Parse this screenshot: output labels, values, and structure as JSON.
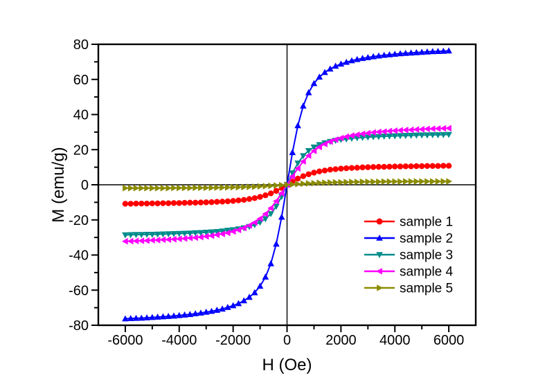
{
  "figure": {
    "background": "#FFFFFF",
    "frame_color": "#000000"
  },
  "chart_data": {
    "type": "line",
    "title": "",
    "xlabel": "H (Oe)",
    "ylabel": "M (emu/g)",
    "xlim": [
      -7000,
      7000
    ],
    "ylim": [
      -80,
      80
    ],
    "grid": false,
    "zero_axis_lines": true,
    "x_ticks": [
      -6000,
      -4000,
      -2000,
      0,
      2000,
      4000,
      6000
    ],
    "x_tick_labels": [
      "-6000",
      "-4000",
      "-2000",
      "0",
      "2000",
      "4000",
      "6000"
    ],
    "x_minor_ticks": [
      -5000,
      -3000,
      -1000,
      1000,
      3000,
      5000
    ],
    "y_ticks": [
      -80,
      -60,
      -40,
      -20,
      0,
      20,
      40,
      60,
      80
    ],
    "y_tick_labels": [
      "-80",
      "-60",
      "-40",
      "-20",
      "0",
      "20",
      "40",
      "60",
      "80"
    ],
    "y_minor_ticks": [
      -70,
      -50,
      -30,
      -10,
      10,
      30,
      50,
      70
    ],
    "legend": {
      "position": "inside-right-middle",
      "border": false,
      "labels": [
        "sample 1",
        "sample 2",
        "sample 3",
        "sample 4",
        "sample 5"
      ]
    },
    "x": [
      -6000,
      -5800,
      -5600,
      -5400,
      -5200,
      -5000,
      -4800,
      -4600,
      -4400,
      -4200,
      -4000,
      -3800,
      -3600,
      -3400,
      -3200,
      -3000,
      -2800,
      -2600,
      -2400,
      -2200,
      -2000,
      -1800,
      -1600,
      -1400,
      -1200,
      -1000,
      -800,
      -600,
      -400,
      -200,
      0,
      200,
      400,
      600,
      800,
      1000,
      1200,
      1400,
      1600,
      1800,
      2000,
      2200,
      2400,
      2600,
      2800,
      3000,
      3200,
      3400,
      3600,
      3800,
      4000,
      4200,
      4400,
      4600,
      4800,
      5000,
      5200,
      5400,
      5600,
      5800,
      6000
    ],
    "series": [
      {
        "name": "sample 1",
        "color": "#FF0000",
        "marker": "circle",
        "saturation_emu_g": 10.8,
        "values": [
          -10.8,
          -10.8,
          -10.7,
          -10.7,
          -10.7,
          -10.6,
          -10.6,
          -10.5,
          -10.5,
          -10.4,
          -10.4,
          -10.3,
          -10.2,
          -10.2,
          -10.1,
          -10.0,
          -9.9,
          -9.7,
          -9.6,
          -9.4,
          -9.2,
          -8.9,
          -8.6,
          -8.1,
          -7.6,
          -6.9,
          -6.0,
          -4.9,
          -3.5,
          -1.8,
          0,
          1.8,
          3.5,
          4.9,
          6.0,
          6.9,
          7.6,
          8.1,
          8.6,
          8.9,
          9.2,
          9.4,
          9.6,
          9.7,
          9.9,
          10.0,
          10.1,
          10.2,
          10.2,
          10.3,
          10.4,
          10.4,
          10.5,
          10.5,
          10.6,
          10.6,
          10.7,
          10.7,
          10.7,
          10.8,
          10.8
        ]
      },
      {
        "name": "sample 2",
        "color": "#0000FF",
        "marker": "triangle-up",
        "saturation_emu_g": 77,
        "values": [
          -76.3,
          -76.1,
          -76.0,
          -75.9,
          -75.7,
          -75.5,
          -75.3,
          -75.1,
          -74.9,
          -74.7,
          -74.4,
          -74.1,
          -73.8,
          -73.4,
          -73.0,
          -72.5,
          -72.0,
          -71.4,
          -70.7,
          -69.8,
          -68.8,
          -67.6,
          -66.0,
          -64.0,
          -61.4,
          -57.7,
          -52.5,
          -44.9,
          -33.7,
          -18.4,
          0,
          18.4,
          33.7,
          44.9,
          52.5,
          57.7,
          61.4,
          64.0,
          66.0,
          67.6,
          68.8,
          69.8,
          70.7,
          71.4,
          72.0,
          72.5,
          73.0,
          73.4,
          73.8,
          74.1,
          74.4,
          74.7,
          74.9,
          75.1,
          75.3,
          75.5,
          75.7,
          75.9,
          76.0,
          76.1,
          76.3
        ]
      },
      {
        "name": "sample 3",
        "color": "#008B8B",
        "marker": "triangle-down",
        "saturation_emu_g": 28.5,
        "values": [
          -28.6,
          -28.5,
          -28.4,
          -28.4,
          -28.3,
          -28.3,
          -28.2,
          -28.1,
          -28.0,
          -27.9,
          -27.8,
          -27.7,
          -27.6,
          -27.4,
          -27.3,
          -27.1,
          -26.9,
          -26.7,
          -26.4,
          -26.0,
          -25.7,
          -25.2,
          -24.6,
          -23.8,
          -22.8,
          -21.4,
          -19.4,
          -16.5,
          -12.3,
          -6.7,
          0,
          6.7,
          12.3,
          16.5,
          19.4,
          21.4,
          22.8,
          23.8,
          24.6,
          25.2,
          25.7,
          26.0,
          26.4,
          26.7,
          26.9,
          27.1,
          27.3,
          27.4,
          27.6,
          27.7,
          27.8,
          27.9,
          28.0,
          28.1,
          28.2,
          28.3,
          28.3,
          28.4,
          28.4,
          28.5,
          28.6
        ]
      },
      {
        "name": "sample 4",
        "color": "#FF00FF",
        "marker": "triangle-left",
        "saturation_emu_g": 32.2,
        "values": [
          -32.2,
          -32.1,
          -32.0,
          -31.9,
          -31.8,
          -31.6,
          -31.5,
          -31.3,
          -31.2,
          -31.0,
          -30.8,
          -30.6,
          -30.3,
          -30.1,
          -29.8,
          -29.4,
          -29.0,
          -28.5,
          -28.0,
          -27.4,
          -26.6,
          -25.7,
          -24.6,
          -23.2,
          -21.5,
          -19.3,
          -16.6,
          -13.3,
          -9.3,
          -4.8,
          0,
          4.8,
          9.3,
          13.3,
          16.6,
          19.3,
          21.5,
          23.2,
          24.6,
          25.7,
          26.6,
          27.4,
          28.0,
          28.5,
          29.0,
          29.4,
          29.8,
          30.1,
          30.3,
          30.6,
          30.8,
          31.0,
          31.2,
          31.3,
          31.5,
          31.6,
          31.8,
          31.9,
          32.0,
          32.1,
          32.2
        ]
      },
      {
        "name": "sample 5",
        "color": "#8B8B00",
        "marker": "triangle-right",
        "saturation_emu_g": 1.9,
        "values": [
          -1.9,
          -1.9,
          -1.9,
          -1.9,
          -1.9,
          -1.9,
          -1.9,
          -1.9,
          -1.9,
          -1.8,
          -1.8,
          -1.8,
          -1.8,
          -1.7,
          -1.7,
          -1.7,
          -1.7,
          -1.6,
          -1.6,
          -1.5,
          -1.4,
          -1.4,
          -1.3,
          -1.2,
          -1.1,
          -0.9,
          -0.8,
          -0.6,
          -0.4,
          -0.2,
          0,
          0.2,
          0.4,
          0.6,
          0.8,
          0.9,
          1.1,
          1.2,
          1.3,
          1.4,
          1.4,
          1.5,
          1.6,
          1.6,
          1.7,
          1.7,
          1.7,
          1.7,
          1.8,
          1.8,
          1.8,
          1.8,
          1.9,
          1.9,
          1.9,
          1.9,
          1.9,
          1.9,
          1.9,
          1.9,
          1.9
        ]
      }
    ]
  }
}
